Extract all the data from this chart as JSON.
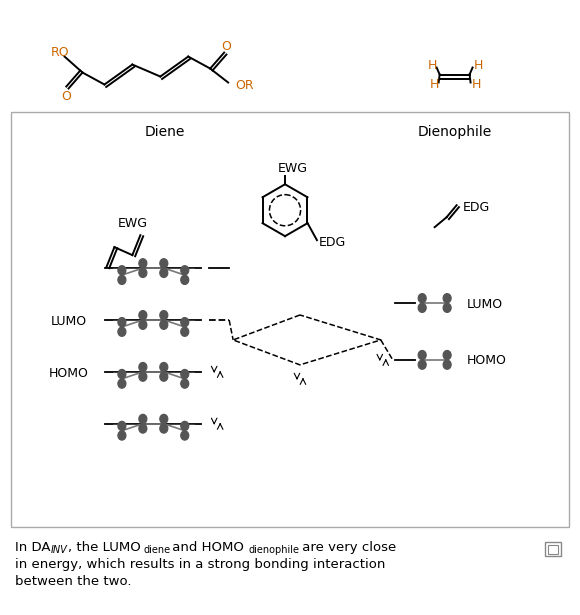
{
  "bg_color": "#ffffff",
  "box_edge_color": "#aaaaaa",
  "text_color": "#000000",
  "orange_color": "#cc6600",
  "figsize": [
    5.8,
    6.15
  ],
  "dpi": 100,
  "diene_label": "Diene",
  "dienophile_label": "Dienophile",
  "ewg_label": "EWG",
  "edg_label": "EDG",
  "lumo_label": "LUMO",
  "homo_label": "HOMO",
  "caption_line1_pre": "In DA",
  "caption_line1_sub1": "INV",
  "caption_line1_mid": ", the LUMO",
  "caption_line1_sub2": "diene",
  "caption_line1_mid2": " and HOMO",
  "caption_line1_sub3": "dienophile",
  "caption_line1_post": " are very close",
  "caption_line2": "in energy, which results in a strong bonding interaction",
  "caption_line3": "between the two."
}
